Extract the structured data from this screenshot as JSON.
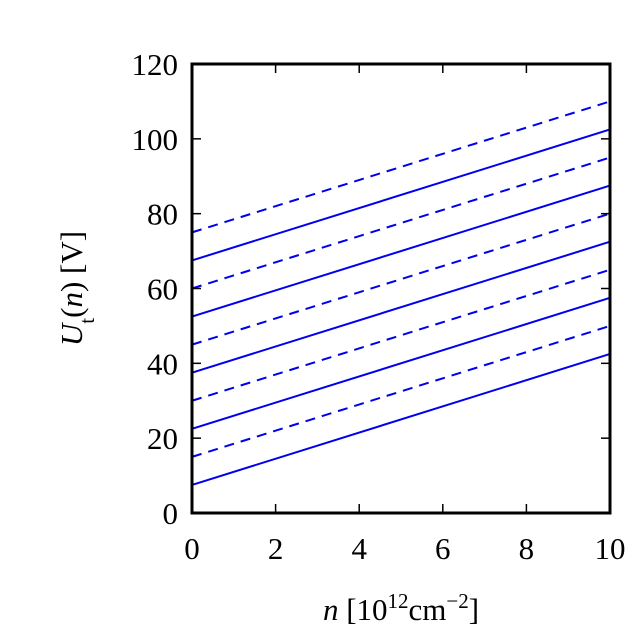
{
  "chart_data": {
    "type": "line",
    "x": [
      0,
      10
    ],
    "series": [
      {
        "color": "#0000ee",
        "dash": false,
        "values": [
          7.5,
          42.5
        ]
      },
      {
        "color": "#0000ee",
        "dash": true,
        "values": [
          15,
          50
        ]
      },
      {
        "color": "#0000ee",
        "dash": false,
        "values": [
          22.5,
          57.5
        ]
      },
      {
        "color": "#0000ee",
        "dash": true,
        "values": [
          30,
          65
        ]
      },
      {
        "color": "#0000ee",
        "dash": false,
        "values": [
          37.5,
          72.5
        ]
      },
      {
        "color": "#0000ee",
        "dash": true,
        "values": [
          45,
          80
        ]
      },
      {
        "color": "#0000ee",
        "dash": false,
        "values": [
          52.5,
          87.5
        ]
      },
      {
        "color": "#0000ee",
        "dash": true,
        "values": [
          60,
          95
        ]
      },
      {
        "color": "#0000ee",
        "dash": false,
        "values": [
          67.5,
          102.5
        ]
      },
      {
        "color": "#0000ee",
        "dash": true,
        "values": [
          75,
          110
        ]
      }
    ],
    "xlim": [
      0,
      10
    ],
    "xticks": [
      0,
      2,
      4,
      6,
      8,
      10
    ],
    "ylim": [
      0,
      120
    ],
    "yticks": [
      0,
      20,
      40,
      60,
      80,
      100,
      120
    ],
    "xlabel": [
      {
        "text": "n",
        "style": "italic"
      },
      {
        "text": " [10"
      },
      {
        "text": "12",
        "style": "sup"
      },
      {
        "text": "cm"
      },
      {
        "text": "−2",
        "style": "sup"
      },
      {
        "text": "]"
      }
    ],
    "ylabel": [
      {
        "text": "U",
        "style": "italic"
      },
      {
        "text": "t",
        "style": "sub"
      },
      {
        "text": "("
      },
      {
        "text": "n",
        "style": "italic"
      },
      {
        "text": ") [V]"
      }
    ]
  }
}
